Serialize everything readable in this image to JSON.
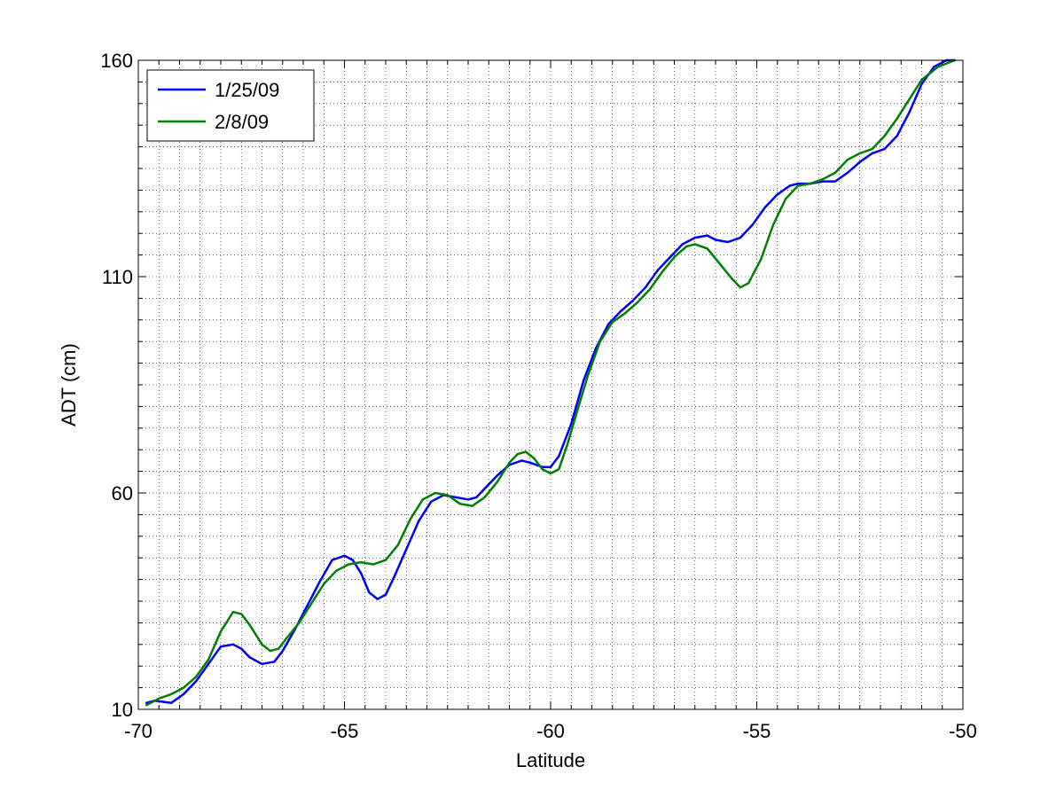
{
  "chart_data": {
    "type": "line",
    "xlabel": "Latitude",
    "ylabel": "ADT  (cm)",
    "xlim": [
      -70,
      -50
    ],
    "ylim": [
      10,
      160
    ],
    "xticks": [
      -70,
      -65,
      -60,
      -55,
      -50
    ],
    "yticks": [
      10,
      60,
      110,
      160
    ],
    "xtick_labels": [
      "-70",
      "-65",
      "-60",
      "-55",
      "-50"
    ],
    "ytick_labels": [
      "10",
      "60",
      "110",
      "160"
    ],
    "grid": "dotted-minor",
    "legend_position": "top-left",
    "series": [
      {
        "name": "1/25/09",
        "color": "#0000ff",
        "x": [
          -69.8,
          -69.6,
          -69.2,
          -68.9,
          -68.6,
          -68.3,
          -68.0,
          -67.7,
          -67.5,
          -67.3,
          -67.0,
          -66.7,
          -66.5,
          -66.2,
          -65.9,
          -65.6,
          -65.3,
          -65.0,
          -64.8,
          -64.6,
          -64.4,
          -64.2,
          -64.0,
          -63.8,
          -63.5,
          -63.2,
          -62.9,
          -62.6,
          -62.3,
          -62.0,
          -61.8,
          -61.6,
          -61.3,
          -61.0,
          -60.7,
          -60.5,
          -60.2,
          -60.0,
          -59.8,
          -59.5,
          -59.2,
          -58.9,
          -58.6,
          -58.3,
          -58.0,
          -57.7,
          -57.4,
          -57.1,
          -56.8,
          -56.5,
          -56.2,
          -56.0,
          -55.7,
          -55.4,
          -55.1,
          -54.8,
          -54.5,
          -54.2,
          -54.0,
          -53.7,
          -53.4,
          -53.1,
          -52.8,
          -52.5,
          -52.2,
          -51.9,
          -51.6,
          -51.3,
          -51.0,
          -50.7,
          -50.4,
          -50.2
        ],
        "y": [
          11.5,
          12.0,
          11.5,
          13.5,
          16.5,
          20.5,
          24.5,
          25.0,
          24.0,
          22.0,
          20.5,
          21.0,
          23.5,
          28.5,
          34.0,
          39.5,
          44.5,
          45.5,
          44.5,
          41.5,
          37.0,
          35.5,
          36.5,
          40.5,
          47.0,
          53.5,
          58.0,
          59.5,
          59.0,
          58.5,
          59.0,
          61.0,
          64.0,
          66.5,
          67.5,
          67.0,
          66.0,
          66.0,
          68.5,
          76.0,
          86.0,
          93.5,
          99.0,
          102.0,
          104.5,
          107.5,
          111.5,
          114.5,
          117.5,
          119.0,
          119.5,
          118.5,
          118.0,
          119.0,
          122.0,
          126.0,
          129.0,
          131.0,
          131.5,
          131.5,
          132.0,
          132.0,
          134.0,
          136.5,
          138.5,
          139.5,
          142.5,
          148.0,
          154.5,
          158.5,
          160.0,
          160.0
        ]
      },
      {
        "name": "2/8/09",
        "color": "#008000",
        "x": [
          -69.8,
          -69.5,
          -69.2,
          -68.9,
          -68.6,
          -68.3,
          -68.0,
          -67.7,
          -67.5,
          -67.3,
          -67.0,
          -66.8,
          -66.6,
          -66.4,
          -66.1,
          -65.8,
          -65.5,
          -65.2,
          -64.9,
          -64.6,
          -64.3,
          -64.0,
          -63.7,
          -63.4,
          -63.1,
          -62.8,
          -62.5,
          -62.2,
          -61.9,
          -61.6,
          -61.3,
          -61.0,
          -60.8,
          -60.6,
          -60.4,
          -60.2,
          -60.0,
          -59.8,
          -59.6,
          -59.4,
          -59.1,
          -58.8,
          -58.5,
          -58.2,
          -57.9,
          -57.6,
          -57.3,
          -57.0,
          -56.7,
          -56.5,
          -56.2,
          -55.9,
          -55.6,
          -55.4,
          -55.2,
          -54.9,
          -54.6,
          -54.3,
          -54.0,
          -53.7,
          -53.4,
          -53.1,
          -52.8,
          -52.5,
          -52.2,
          -51.9,
          -51.6,
          -51.3,
          -51.0,
          -50.6,
          -50.2
        ],
        "y": [
          11.0,
          12.5,
          13.5,
          15.0,
          17.5,
          21.5,
          28.0,
          32.5,
          32.0,
          29.5,
          25.0,
          23.5,
          24.0,
          26.5,
          30.0,
          34.5,
          39.0,
          42.0,
          43.5,
          44.0,
          43.5,
          44.5,
          48.0,
          54.0,
          58.5,
          60.0,
          59.5,
          57.5,
          57.0,
          59.0,
          62.5,
          67.0,
          69.0,
          69.5,
          68.0,
          65.5,
          64.5,
          65.5,
          71.0,
          77.5,
          87.0,
          95.0,
          99.5,
          101.5,
          104.0,
          107.0,
          111.0,
          114.5,
          117.0,
          117.5,
          116.5,
          113.0,
          109.5,
          107.5,
          108.5,
          114.0,
          122.0,
          128.0,
          131.0,
          131.5,
          132.5,
          134.0,
          137.0,
          138.5,
          139.5,
          142.5,
          146.5,
          151.0,
          155.5,
          158.5,
          160.0
        ]
      }
    ]
  }
}
